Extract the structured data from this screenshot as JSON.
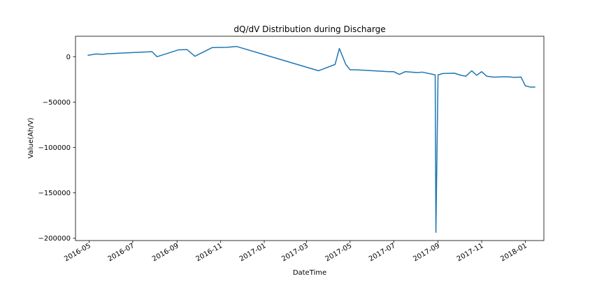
{
  "chart_data": {
    "type": "line",
    "title": "dQ/dV Distribution during Discharge",
    "xlabel": "DateTime",
    "ylabel": "Value(Ah/V)",
    "xlim": [
      "2016-04-12",
      "2018-01-27"
    ],
    "ylim": [
      -202500,
      22500
    ],
    "grid": false,
    "xticks": [
      {
        "date": "2016-05-01",
        "label": "2016-05"
      },
      {
        "date": "2016-07-01",
        "label": "2016-07"
      },
      {
        "date": "2016-09-01",
        "label": "2016-09"
      },
      {
        "date": "2016-11-01",
        "label": "2016-11"
      },
      {
        "date": "2017-01-01",
        "label": "2017-01"
      },
      {
        "date": "2017-03-01",
        "label": "2017-03"
      },
      {
        "date": "2017-05-01",
        "label": "2017-05"
      },
      {
        "date": "2017-07-01",
        "label": "2017-07"
      },
      {
        "date": "2017-09-01",
        "label": "2017-09"
      },
      {
        "date": "2017-11-01",
        "label": "2017-11"
      },
      {
        "date": "2018-01-01",
        "label": "2018-01"
      }
    ],
    "yticks": [
      {
        "value": 0,
        "label": "0"
      },
      {
        "value": -50000,
        "label": "−50000"
      },
      {
        "value": -100000,
        "label": "−100000"
      },
      {
        "value": -150000,
        "label": "−150000"
      },
      {
        "value": -200000,
        "label": "−200000"
      }
    ],
    "series": [
      {
        "color": "#1f77b4",
        "points": [
          {
            "x": "2016-04-29",
            "y": 1500
          },
          {
            "x": "2016-05-11",
            "y": 3000
          },
          {
            "x": "2016-05-20",
            "y": 2500
          },
          {
            "x": "2016-05-26",
            "y": 3200
          },
          {
            "x": "2016-07-28",
            "y": 5500
          },
          {
            "x": "2016-08-04",
            "y": 0
          },
          {
            "x": "2016-09-03",
            "y": 7500
          },
          {
            "x": "2016-09-15",
            "y": 7800
          },
          {
            "x": "2016-09-26",
            "y": 500
          },
          {
            "x": "2016-10-20",
            "y": 10000
          },
          {
            "x": "2016-11-10",
            "y": 10300
          },
          {
            "x": "2016-11-23",
            "y": 11300
          },
          {
            "x": "2017-03-18",
            "y": -15500
          },
          {
            "x": "2017-04-10",
            "y": -8500
          },
          {
            "x": "2017-04-16",
            "y": 9000
          },
          {
            "x": "2017-04-25",
            "y": -8500
          },
          {
            "x": "2017-05-01",
            "y": -14500
          },
          {
            "x": "2017-05-10",
            "y": -14500
          },
          {
            "x": "2017-06-24",
            "y": -16500
          },
          {
            "x": "2017-07-01",
            "y": -16500
          },
          {
            "x": "2017-07-09",
            "y": -19500
          },
          {
            "x": "2017-07-17",
            "y": -16500
          },
          {
            "x": "2017-08-03",
            "y": -17500
          },
          {
            "x": "2017-08-10",
            "y": -17000
          },
          {
            "x": "2017-08-28",
            "y": -20000
          },
          {
            "x": "2017-08-29",
            "y": -193500
          },
          {
            "x": "2017-09-01",
            "y": -20000
          },
          {
            "x": "2017-09-08",
            "y": -18500
          },
          {
            "x": "2017-09-24",
            "y": -18200
          },
          {
            "x": "2017-10-03",
            "y": -20500
          },
          {
            "x": "2017-10-10",
            "y": -21500
          },
          {
            "x": "2017-10-18",
            "y": -15500
          },
          {
            "x": "2017-10-25",
            "y": -20500
          },
          {
            "x": "2017-11-01",
            "y": -16500
          },
          {
            "x": "2017-11-08",
            "y": -21500
          },
          {
            "x": "2017-11-18",
            "y": -22500
          },
          {
            "x": "2017-11-28",
            "y": -22200
          },
          {
            "x": "2017-12-10",
            "y": -22200
          },
          {
            "x": "2017-12-16",
            "y": -22800
          },
          {
            "x": "2017-12-26",
            "y": -22400
          },
          {
            "x": "2018-01-01",
            "y": -32000
          },
          {
            "x": "2018-01-08",
            "y": -33500
          },
          {
            "x": "2018-01-15",
            "y": -33500
          }
        ]
      }
    ]
  }
}
